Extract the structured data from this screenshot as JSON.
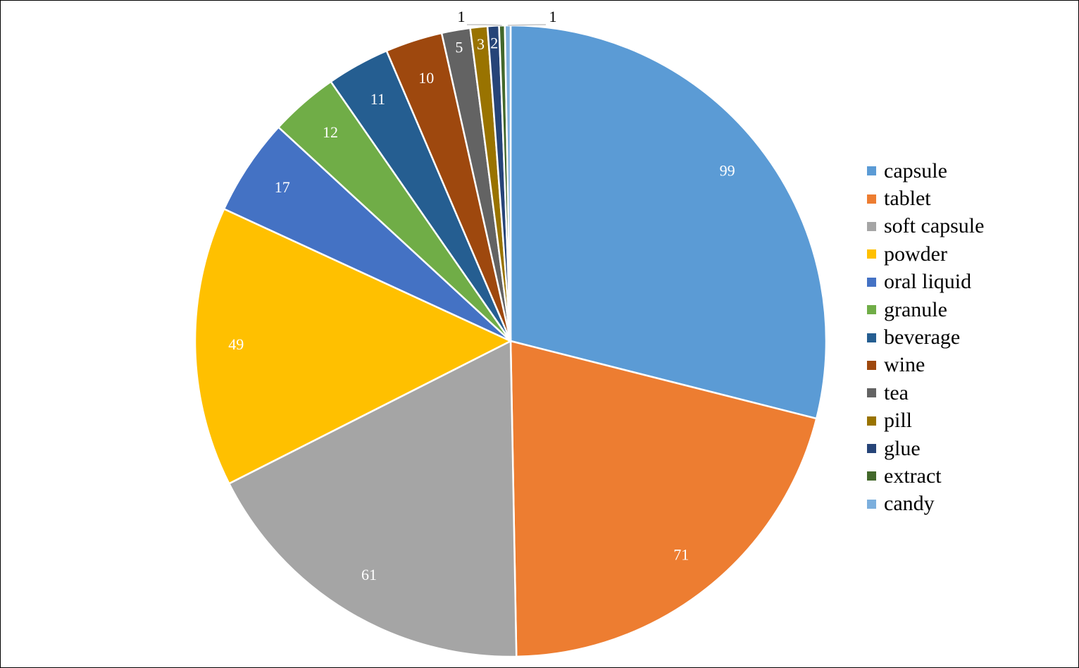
{
  "chart_data": {
    "type": "pie",
    "title": "",
    "legend_position": "right",
    "slices": [
      {
        "label": "capsule",
        "value": 99,
        "color": "#5B9BD5"
      },
      {
        "label": "tablet",
        "value": 71,
        "color": "#ED7D31"
      },
      {
        "label": "soft capsule",
        "value": 61,
        "color": "#A5A5A5"
      },
      {
        "label": "powder",
        "value": 49,
        "color": "#FFC000"
      },
      {
        "label": "oral liquid",
        "value": 17,
        "color": "#4472C4"
      },
      {
        "label": "granule",
        "value": 12,
        "color": "#70AD47"
      },
      {
        "label": "beverage",
        "value": 11,
        "color": "#255E91"
      },
      {
        "label": "wine",
        "value": 10,
        "color": "#9E480E"
      },
      {
        "label": "tea",
        "value": 5,
        "color": "#636363"
      },
      {
        "label": "pill",
        "value": 3,
        "color": "#997300"
      },
      {
        "label": "glue",
        "value": 2,
        "color": "#264478"
      },
      {
        "label": "extract",
        "value": 1,
        "color": "#43682B"
      },
      {
        "label": "candy",
        "value": 1,
        "color": "#7CAFDD"
      }
    ]
  }
}
